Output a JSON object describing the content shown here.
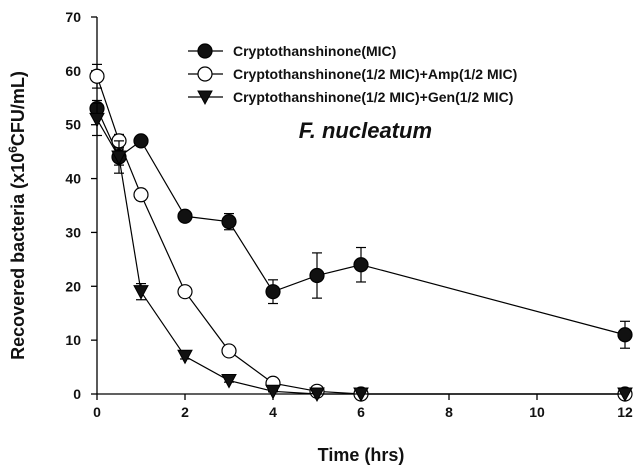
{
  "chart_data": {
    "type": "line",
    "title": "",
    "annotation": "F. nucleatum",
    "xlabel": "Time (hrs)",
    "ylabel_parts": [
      "Recovered bacteria (x10",
      "6",
      "CFU/mL)"
    ],
    "xlim": [
      0,
      12
    ],
    "ylim": [
      0,
      70
    ],
    "xticks": [
      0,
      2,
      4,
      6,
      8,
      10,
      12
    ],
    "yticks": [
      0,
      10,
      20,
      30,
      40,
      50,
      60,
      70
    ],
    "grid": false,
    "legend_position": "top-right",
    "series": [
      {
        "name": "Cryptothanshinone(MIC)",
        "marker": "filled-circle",
        "x": [
          0,
          0.5,
          1,
          2,
          3,
          4,
          5,
          6,
          12
        ],
        "y": [
          53,
          44,
          47,
          33,
          32,
          19,
          22,
          24,
          11
        ],
        "err": [
          1.5,
          1.5,
          0.8,
          0.8,
          1.5,
          2.2,
          4.2,
          3.2,
          2.5
        ]
      },
      {
        "name": "Cryptothanshinone(1/2 MIC)+Amp(1/2 MIC)",
        "marker": "open-circle",
        "x": [
          0,
          0.5,
          1,
          2,
          3,
          4,
          5,
          6,
          12
        ],
        "y": [
          59,
          47,
          37,
          19,
          8,
          2,
          0.5,
          0,
          0
        ],
        "err": [
          2.2,
          1.2,
          1,
          0.6,
          0.5,
          0.3,
          0.2,
          0,
          0
        ]
      },
      {
        "name": "Cryptothanshinone(1/2 MIC)+Gen(1/2 MIC)",
        "marker": "filled-triangle-down",
        "x": [
          0,
          0.5,
          1,
          2,
          3,
          4,
          5,
          6,
          12
        ],
        "y": [
          51,
          44,
          19,
          7,
          2.5,
          0.5,
          0,
          0,
          0
        ],
        "err": [
          3,
          3,
          1.5,
          0.5,
          0.3,
          0.1,
          0,
          0,
          0
        ]
      }
    ]
  }
}
